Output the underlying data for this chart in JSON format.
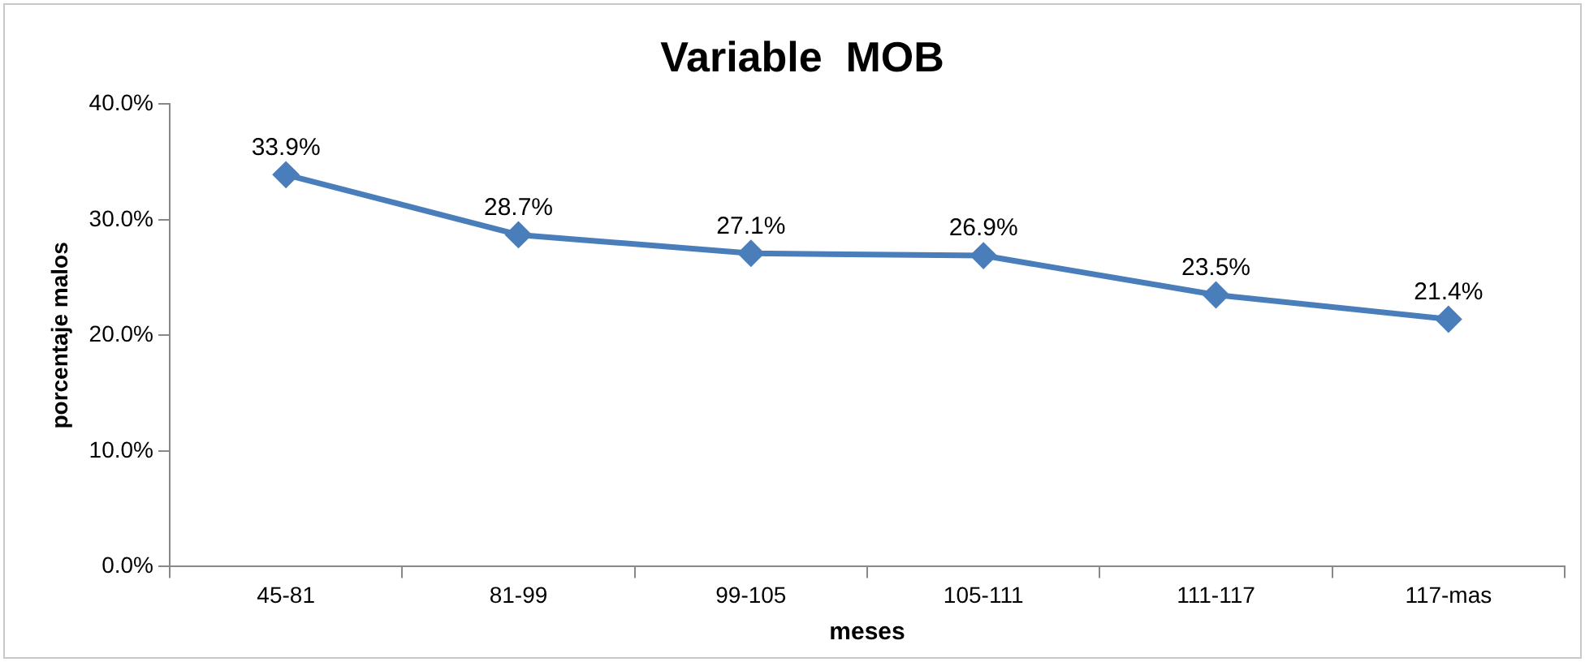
{
  "chart_data": {
    "type": "line",
    "title": "Variable  MOB",
    "xlabel": "meses",
    "ylabel": "porcentaje malos",
    "categories": [
      "45-81",
      "81-99",
      "99-105",
      "105-111",
      "111-117",
      "117-mas"
    ],
    "series": [
      {
        "color": "#4a7ebb",
        "values": [
          33.9,
          28.7,
          27.1,
          26.9,
          23.5,
          21.4
        ],
        "value_labels": [
          "33.9%",
          "28.7%",
          "27.1%",
          "26.9%",
          "23.5%",
          "21.4%"
        ]
      }
    ],
    "ylim": [
      0,
      40
    ],
    "yticks": [
      {
        "value": 0,
        "label": "0.0%"
      },
      {
        "value": 10,
        "label": "10.0%"
      },
      {
        "value": 20,
        "label": "20.0%"
      },
      {
        "value": 30,
        "label": "30.0%"
      },
      {
        "value": 40,
        "label": "40.0%"
      }
    ],
    "grid": false,
    "legend": false,
    "marker": "diamond",
    "line_style": "solid"
  }
}
